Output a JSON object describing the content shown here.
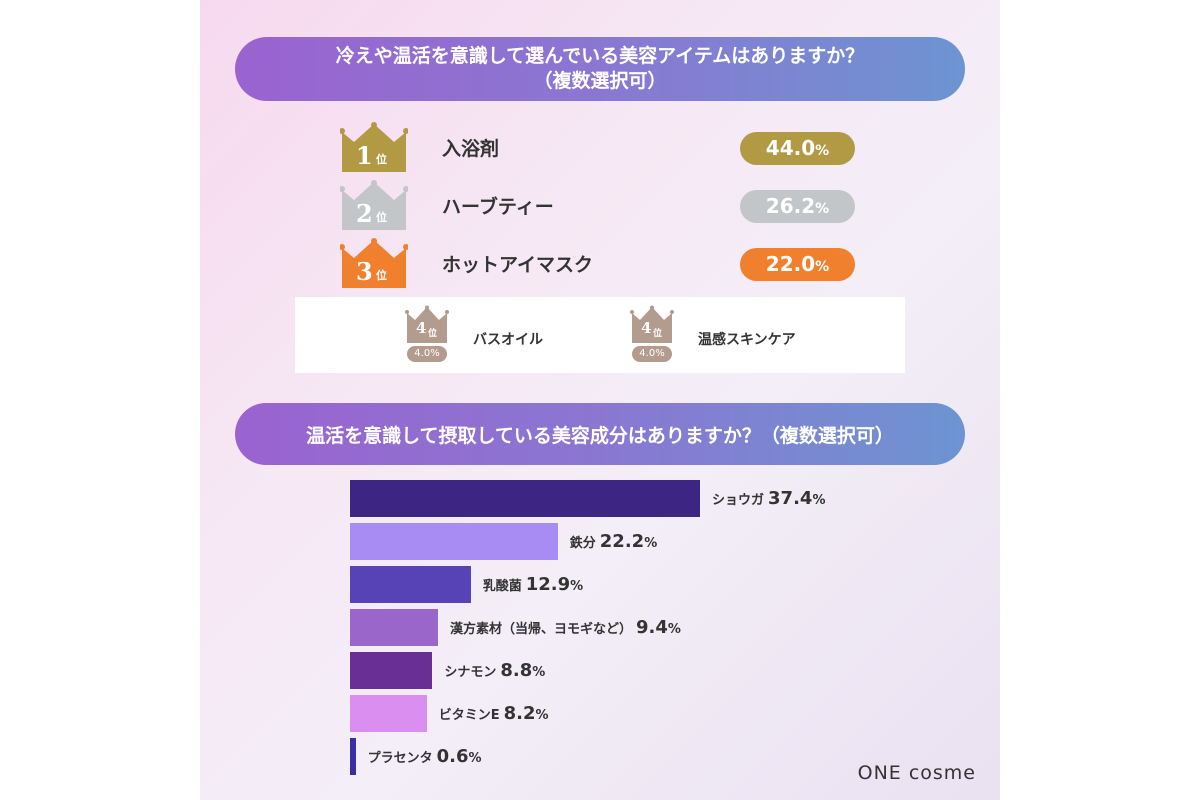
{
  "question1": {
    "line1": "冷えや温活を意識して選んでいる美容アイテムはありますか？",
    "line2": "（複数選択可）"
  },
  "ranking": [
    {
      "rank": "1",
      "unit": "位",
      "label": "入浴剤",
      "value": "44.0",
      "pct": "%",
      "color": "#b19a43"
    },
    {
      "rank": "2",
      "unit": "位",
      "label": "ハーブティー",
      "value": "26.2",
      "pct": "%",
      "color": "#c3c6c9"
    },
    {
      "rank": "3",
      "unit": "位",
      "label": "ホットアイマスク",
      "value": "22.0",
      "pct": "%",
      "color": "#f07f2e"
    }
  ],
  "fourth": [
    {
      "rank": "4",
      "unit": "位",
      "label": "バスオイル",
      "value": "4.0%",
      "color": "#b39b8e"
    },
    {
      "rank": "4",
      "unit": "位",
      "label": "温感スキンケア",
      "value": "4.0%",
      "color": "#b39b8e"
    }
  ],
  "question2": "温活を意識して摂取している美容成分はありますか？（複数選択可）",
  "chart_data": {
    "type": "bar",
    "orientation": "horizontal",
    "categories": [
      "ショウガ",
      "鉄分",
      "乳酸菌",
      "漢方素材（当帰、ヨモギなど）",
      "シナモン",
      "ビタミンE",
      "プラセンタ"
    ],
    "values": [
      37.4,
      22.2,
      12.9,
      9.4,
      8.8,
      8.2,
      0.6
    ],
    "value_labels": [
      "37.4",
      "22.2",
      "12.9",
      "9.4",
      "8.8",
      "8.2",
      "0.6"
    ],
    "unit": "%",
    "colors": [
      "#3d2584",
      "#a98bf4",
      "#5843b6",
      "#9a66ca",
      "#6a2f94",
      "#da8ff0",
      "#3a2fa0"
    ],
    "xlim": [
      0,
      37.4
    ]
  },
  "brand": "ONE cosme"
}
